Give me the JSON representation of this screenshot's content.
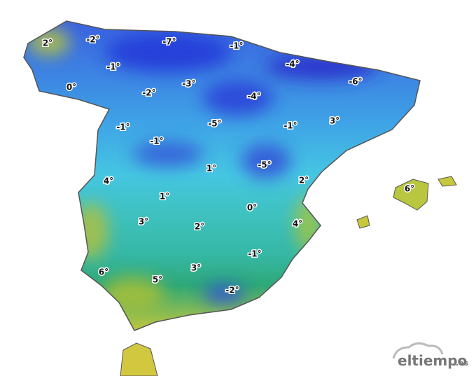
{
  "temperature_labels": [
    "2°",
    "-2°",
    "-7°",
    "-1°",
    "-1°",
    "0°",
    "-2°",
    "-3°",
    "-4°",
    "-6°",
    "-4°",
    "-1°",
    "-5°",
    "-1°",
    "3°",
    "-1°",
    "1°",
    "-5°",
    "2°",
    "4°",
    "6°",
    "1°",
    "0°",
    "3°",
    "2°",
    "4°",
    "-1°",
    "3°",
    "6°",
    "5°",
    "-2°"
  ],
  "logo": {
    "name": "eltiempo",
    "domain": ".es"
  }
}
